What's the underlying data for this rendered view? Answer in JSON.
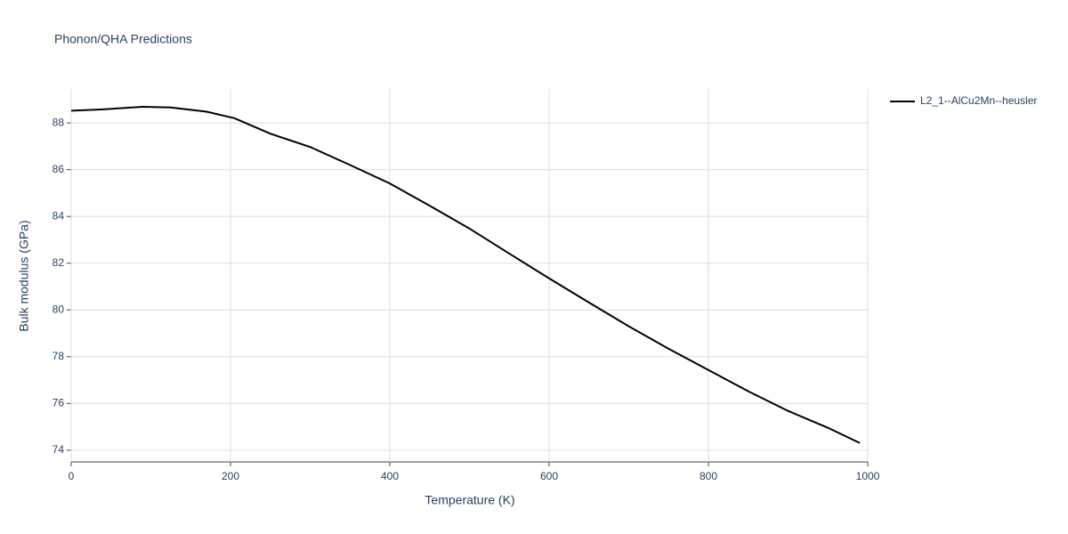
{
  "chart_data": {
    "type": "line",
    "title": "Phonon/QHA Predictions",
    "x_label": "Temperature (K)",
    "y_label": "Bulk modulus (GPa)",
    "x": [
      0,
      40,
      90,
      125,
      170,
      205,
      250,
      300,
      350,
      400,
      450,
      500,
      550,
      600,
      650,
      700,
      750,
      800,
      850,
      900,
      950,
      990
    ],
    "series": [
      {
        "name": "L2_1--AlCu2Mn--heusler",
        "color": "#000000",
        "values": [
          88.52,
          88.58,
          88.69,
          88.66,
          88.48,
          88.2,
          87.54,
          86.97,
          86.2,
          85.41,
          84.46,
          83.48,
          82.41,
          81.35,
          80.32,
          79.3,
          78.34,
          77.43,
          76.52,
          75.68,
          74.96,
          74.31
        ]
      }
    ],
    "xlim": [
      0,
      1000
    ],
    "xticks": [
      0,
      200,
      400,
      600,
      800,
      1000
    ],
    "ylim": [
      73.5,
      89.45
    ],
    "yticks": [
      74,
      76,
      78,
      80,
      82,
      84,
      86,
      88
    ],
    "grid": true,
    "legend": "right"
  }
}
